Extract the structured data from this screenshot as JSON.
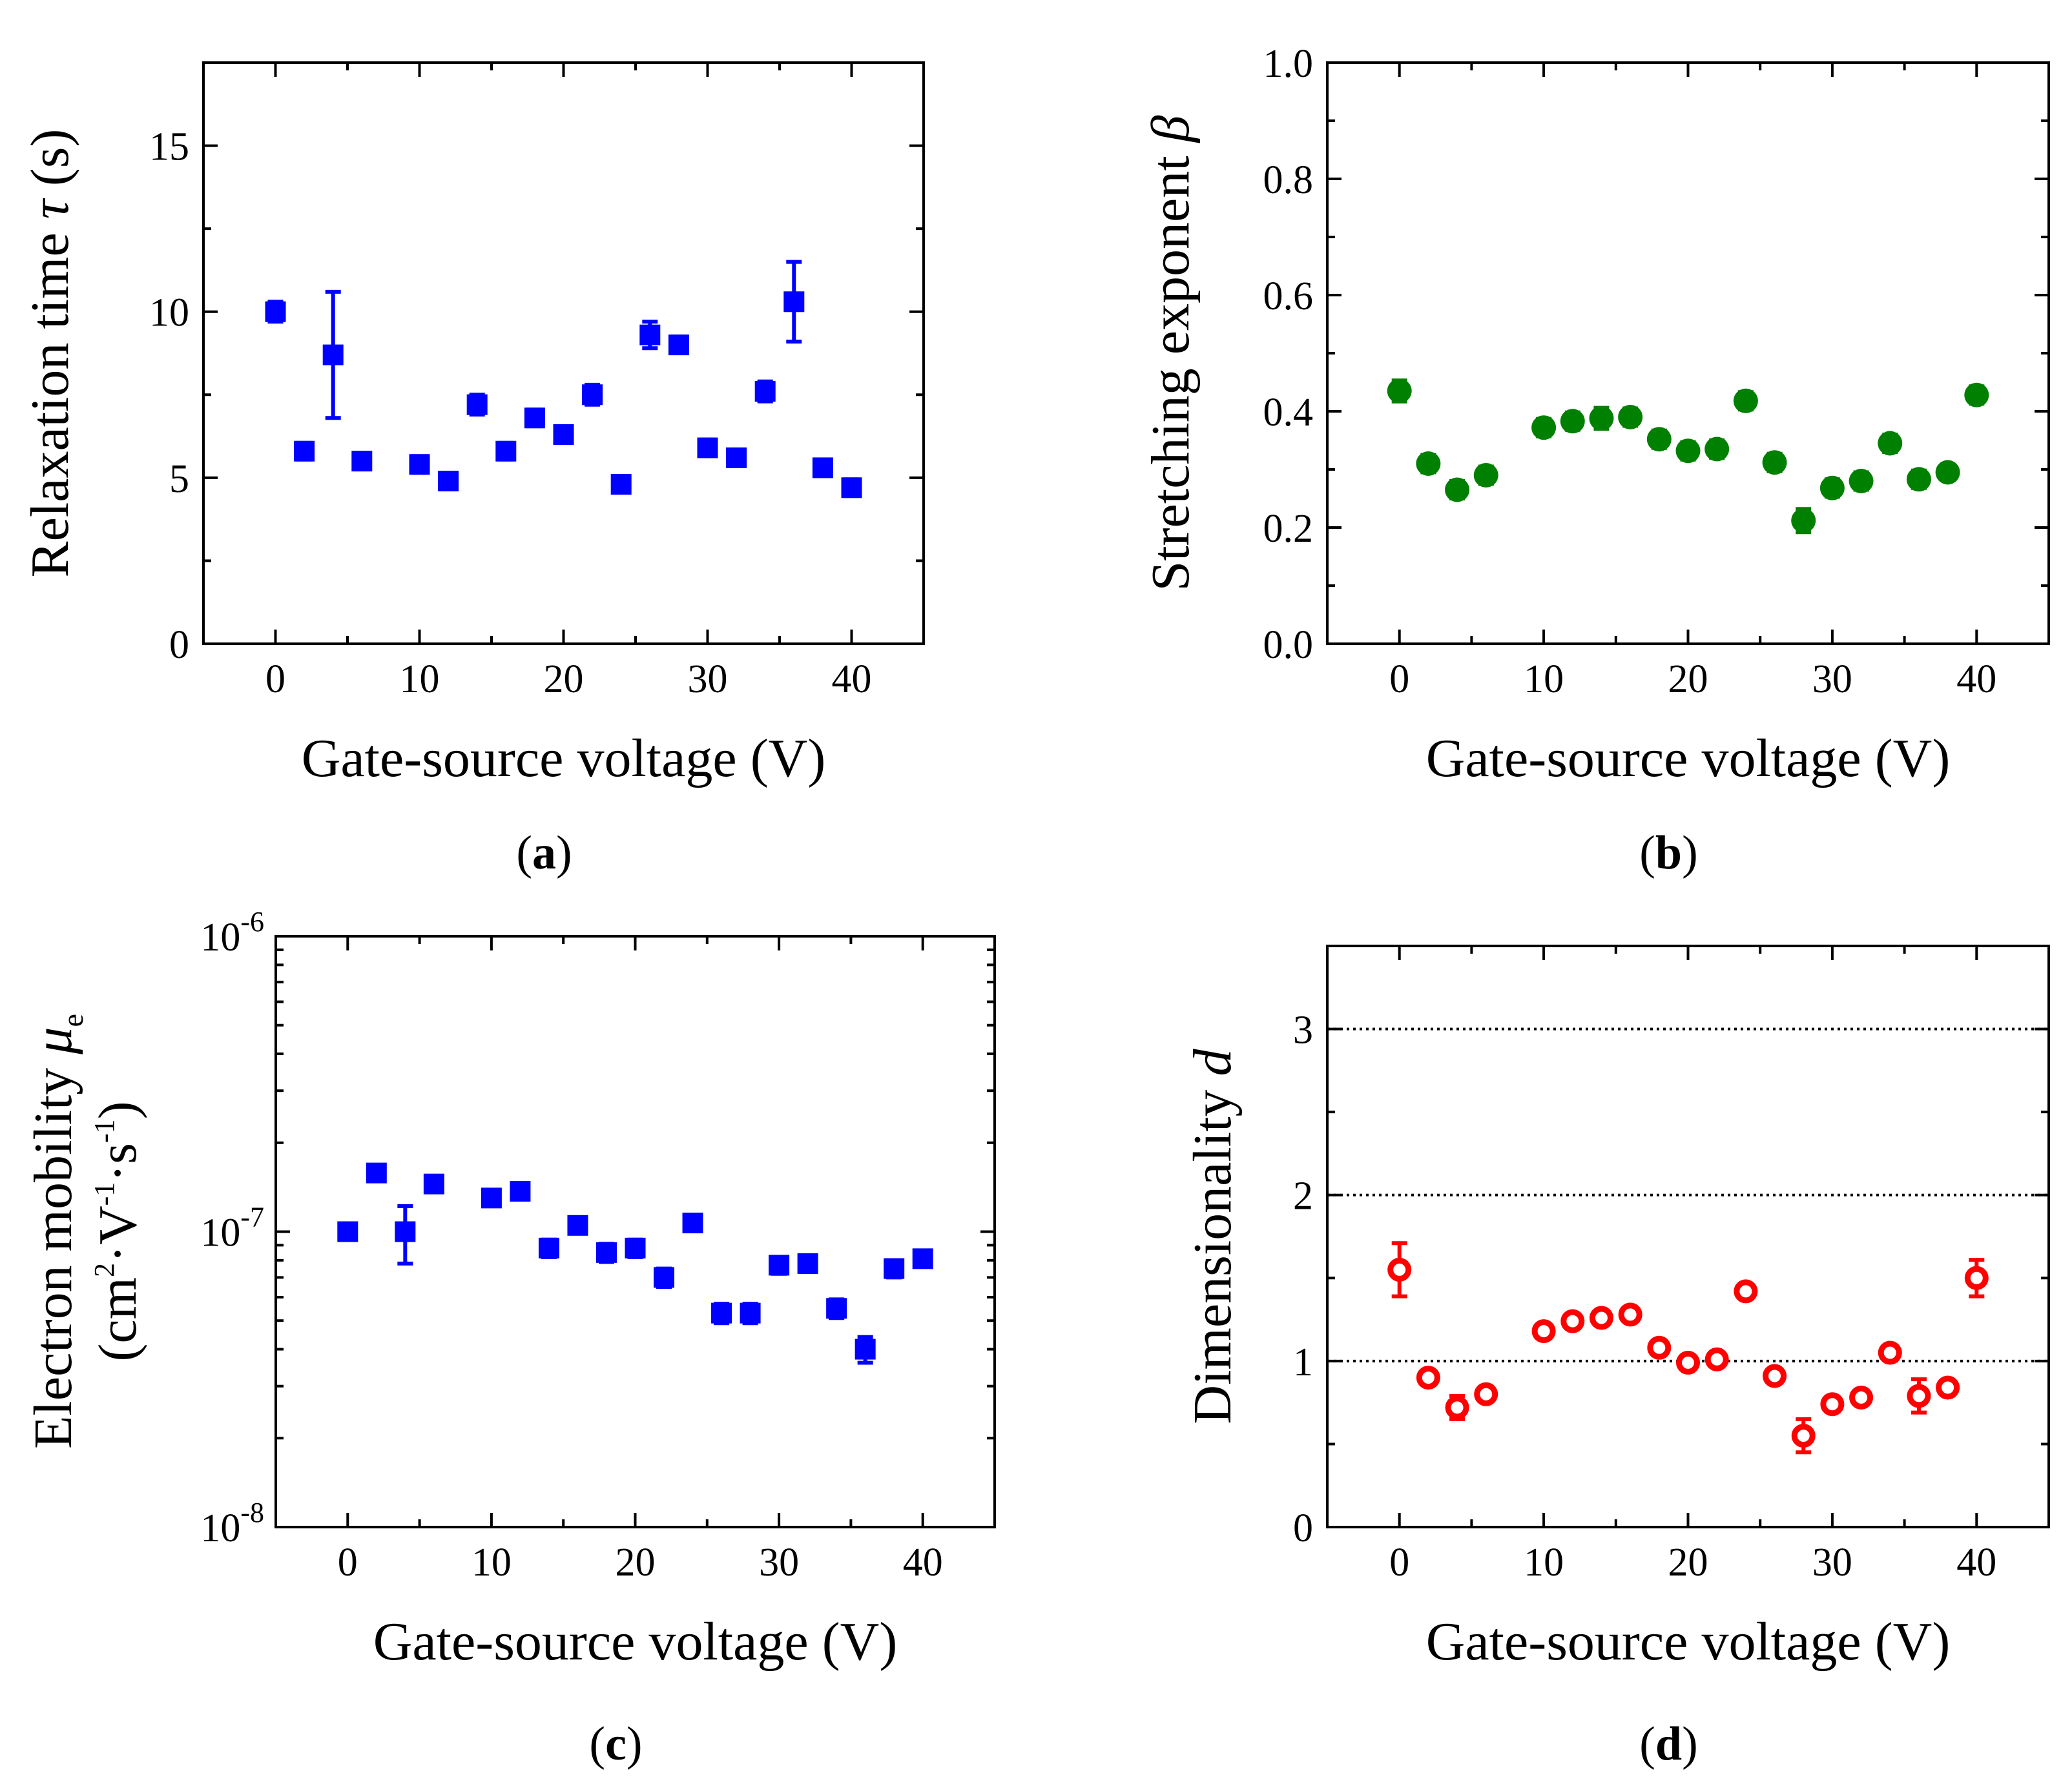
{
  "chart_data": [
    {
      "id": "a",
      "type": "scatter",
      "panel_label": "a",
      "xlabel": "Gate-source voltage (V)",
      "ylabel": "Relaxation time τ (s)",
      "ylabel_parts": {
        "prefix": "Relaxation time ",
        "symbol": "τ",
        "suffix": " (s)"
      },
      "xlim": [
        -5,
        45
      ],
      "ylim": [
        0,
        17.5
      ],
      "yscale": "linear",
      "xticks": [
        0,
        10,
        20,
        30,
        40
      ],
      "xtick_labels": [
        "0",
        "10",
        "20",
        "30",
        "40"
      ],
      "yticks": [
        0,
        5,
        10,
        15
      ],
      "ytick_labels": [
        "0",
        "5",
        "10",
        "15"
      ],
      "marker": "square",
      "filled": true,
      "color": "#0000ff",
      "x": [
        0,
        2,
        4,
        6,
        10,
        12,
        14,
        16,
        18,
        20,
        22,
        24,
        26,
        28,
        30,
        32,
        34,
        36,
        38,
        40
      ],
      "y": [
        10.0,
        5.8,
        8.7,
        5.5,
        5.4,
        4.9,
        7.2,
        5.8,
        6.8,
        6.3,
        7.5,
        4.8,
        9.3,
        9.0,
        5.9,
        5.6,
        7.6,
        10.3,
        5.3,
        4.7
      ],
      "err": [
        0.3,
        0.25,
        1.9,
        0.25,
        0.25,
        0.25,
        0.3,
        0.25,
        0.25,
        0.25,
        0.3,
        0.25,
        0.4,
        0.25,
        0.25,
        0.25,
        0.3,
        1.2,
        0.25,
        0.25
      ]
    },
    {
      "id": "b",
      "type": "scatter",
      "panel_label": "b",
      "xlabel": "Gate-source voltage (V)",
      "ylabel": "Stretching exponent β",
      "ylabel_parts": {
        "prefix": "Stretching exponent ",
        "symbol": "β",
        "suffix": ""
      },
      "xlim": [
        -5,
        45
      ],
      "ylim": [
        0,
        1
      ],
      "yscale": "linear",
      "xticks": [
        0,
        10,
        20,
        30,
        40
      ],
      "xtick_labels": [
        "0",
        "10",
        "20",
        "30",
        "40"
      ],
      "yticks": [
        0,
        0.2,
        0.4,
        0.6,
        0.8,
        1.0
      ],
      "ytick_labels": [
        "0.0",
        "0.2",
        "0.4",
        "0.6",
        "0.8",
        "1.0"
      ],
      "marker": "circle",
      "filled": true,
      "color": "#008000",
      "x": [
        0,
        2,
        4,
        6,
        10,
        12,
        14,
        16,
        18,
        20,
        22,
        24,
        26,
        28,
        30,
        32,
        34,
        36,
        38,
        40
      ],
      "y": [
        0.435,
        0.31,
        0.265,
        0.29,
        0.372,
        0.383,
        0.388,
        0.39,
        0.352,
        0.332,
        0.335,
        0.418,
        0.312,
        0.212,
        0.268,
        0.28,
        0.345,
        0.283,
        0.295,
        0.428
      ],
      "err": [
        0.018,
        0.015,
        0.015,
        0.015,
        0.015,
        0.015,
        0.018,
        0.015,
        0.015,
        0.015,
        0.015,
        0.015,
        0.015,
        0.02,
        0.015,
        0.015,
        0.015,
        0.015,
        0.012,
        0.015
      ]
    },
    {
      "id": "c",
      "type": "scatter",
      "panel_label": "c",
      "xlabel": "Gate-source voltage (V)",
      "ylabel": "Electron mobility μe (cm2·V-1·s-1)",
      "ylabel_line1": {
        "prefix": "Electron mobility ",
        "symbol": "μ",
        "sub": "e"
      },
      "ylabel_line2": {
        "open": "(cm",
        "sup1": "2",
        "mid1": "·V",
        "sup2": "-1",
        "mid2": "·s",
        "sup3": "-1",
        "close": ")"
      },
      "xlim": [
        -5,
        45
      ],
      "ylim": [
        1e-08,
        1e-06
      ],
      "yscale": "log",
      "xticks": [
        0,
        10,
        20,
        30,
        40
      ],
      "xtick_labels": [
        "0",
        "10",
        "20",
        "30",
        "40"
      ],
      "yticks": [
        1e-08,
        1e-07,
        1e-06
      ],
      "ytick_base": "10",
      "ytick_exponents": [
        "-8",
        "-7",
        "-6"
      ],
      "marker": "square",
      "filled": true,
      "color": "#0000ff",
      "x": [
        0,
        2,
        4,
        6,
        10,
        12,
        14,
        16,
        18,
        20,
        22,
        24,
        26,
        28,
        30,
        32,
        34,
        36,
        38,
        40
      ],
      "y": [
        1e-07,
        1.58e-07,
        1e-07,
        1.45e-07,
        1.3e-07,
        1.37e-07,
        8.8e-08,
        1.05e-07,
        8.5e-08,
        8.8e-08,
        7e-08,
        1.07e-07,
        5.3e-08,
        5.3e-08,
        7.7e-08,
        7.8e-08,
        5.5e-08,
        4e-08,
        7.5e-08,
        8.1e-08
      ],
      "err_low": [
        6e-09,
        8e-09,
        2.2e-08,
        8e-09,
        8e-09,
        8e-09,
        6e-09,
        6e-09,
        6e-09,
        6e-09,
        5e-09,
        6e-09,
        4e-09,
        4e-09,
        5e-09,
        5e-09,
        4e-09,
        4e-09,
        5e-09,
        5e-09
      ],
      "err_high": [
        6e-09,
        8e-09,
        2.2e-08,
        8e-09,
        8e-09,
        8e-09,
        6e-09,
        6e-09,
        6e-09,
        6e-09,
        5e-09,
        6e-09,
        4e-09,
        4e-09,
        5e-09,
        5e-09,
        4e-09,
        4e-09,
        5e-09,
        5e-09
      ]
    },
    {
      "id": "d",
      "type": "scatter",
      "panel_label": "d",
      "xlabel": "Gate-source voltage (V)",
      "ylabel": "Dimensionality d",
      "ylabel_parts": {
        "prefix": "Dimensionality ",
        "symbol": "d",
        "suffix": ""
      },
      "xlim": [
        -5,
        45
      ],
      "ylim": [
        0,
        3.5
      ],
      "yscale": "linear",
      "xticks": [
        0,
        10,
        20,
        30,
        40
      ],
      "xtick_labels": [
        "0",
        "10",
        "20",
        "30",
        "40"
      ],
      "yticks": [
        0,
        1,
        2,
        3
      ],
      "ytick_labels": [
        "0",
        "1",
        "2",
        "3"
      ],
      "reference_lines": [
        1,
        2,
        3
      ],
      "reference_style": "dotted",
      "marker": "circle",
      "filled": false,
      "color": "#ff0000",
      "x": [
        0,
        2,
        4,
        6,
        10,
        12,
        14,
        16,
        18,
        20,
        22,
        24,
        26,
        28,
        30,
        32,
        34,
        36,
        38,
        40
      ],
      "y": [
        1.55,
        0.9,
        0.72,
        0.8,
        1.18,
        1.24,
        1.26,
        1.28,
        1.08,
        0.99,
        1.01,
        1.42,
        0.91,
        0.55,
        0.74,
        0.78,
        1.05,
        0.79,
        0.84,
        1.5
      ],
      "err": [
        0.16,
        0.04,
        0.07,
        0.04,
        0.04,
        0.04,
        0.04,
        0.04,
        0.04,
        0.04,
        0.04,
        0.04,
        0.04,
        0.1,
        0.04,
        0.04,
        0.04,
        0.1,
        0.04,
        0.11
      ]
    }
  ]
}
